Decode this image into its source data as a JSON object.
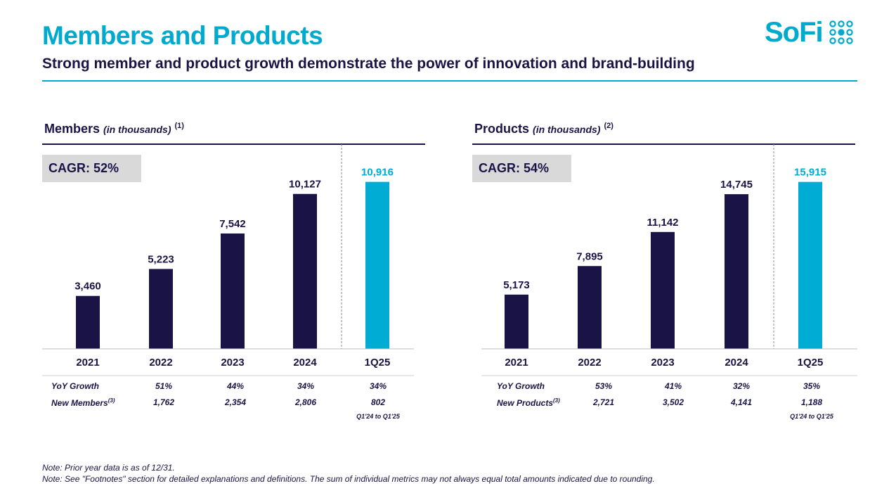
{
  "header": {
    "title": "Members and Products",
    "subtitle": "Strong member and product growth demonstrate the power of innovation and brand-building",
    "logo_text": "SoFi"
  },
  "colors": {
    "accent": "#00a9ce",
    "navy": "#1a1446",
    "gray_box": "#d9d9d9",
    "highlight_bar": "#00acd4"
  },
  "chart_data": [
    {
      "type": "bar",
      "title": "Members",
      "unit": "(in thousands)",
      "footnote": "(1)",
      "cagr": "CAGR: 52%",
      "categories": [
        "2021",
        "2022",
        "2023",
        "2024",
        "1Q25"
      ],
      "values": [
        3460,
        5223,
        7542,
        10127,
        10916
      ],
      "value_labels": [
        "3,460",
        "5,223",
        "7,542",
        "10,127",
        "10,916"
      ],
      "highlight_index": 4,
      "ylim": [
        0,
        12000
      ],
      "xlabel": "",
      "ylabel": "",
      "stats": {
        "yoy_label": "YoY Growth",
        "yoy": [
          "51%",
          "44%",
          "34%",
          "34%"
        ],
        "new_label": "New Members",
        "new_footnote": "(3)",
        "new": [
          "1,762",
          "2,354",
          "2,806",
          "802"
        ],
        "last_note": "Q1'24 to Q1'25"
      }
    },
    {
      "type": "bar",
      "title": "Products",
      "unit": "(in thousands)",
      "footnote": "(2)",
      "cagr": "CAGR: 54%",
      "categories": [
        "2021",
        "2022",
        "2023",
        "2024",
        "1Q25"
      ],
      "values": [
        5173,
        7895,
        11142,
        14745,
        15915
      ],
      "value_labels": [
        "5,173",
        "7,895",
        "11,142",
        "14,745",
        "15,915"
      ],
      "highlight_index": 4,
      "ylim": [
        0,
        17500
      ],
      "xlabel": "",
      "ylabel": "",
      "stats": {
        "yoy_label": "YoY Growth",
        "yoy": [
          "53%",
          "41%",
          "32%",
          "35%"
        ],
        "new_label": "New Products",
        "new_footnote": "(3)",
        "new": [
          "2,721",
          "3,502",
          "4,141",
          "1,188"
        ],
        "last_note": "Q1'24 to Q1'25"
      }
    }
  ],
  "notes": [
    "Note: Prior year data is as of 12/31.",
    "Note: See \"Footnotes\" section for detailed explanations and definitions. The sum of individual metrics may not always equal total amounts indicated due to rounding."
  ]
}
